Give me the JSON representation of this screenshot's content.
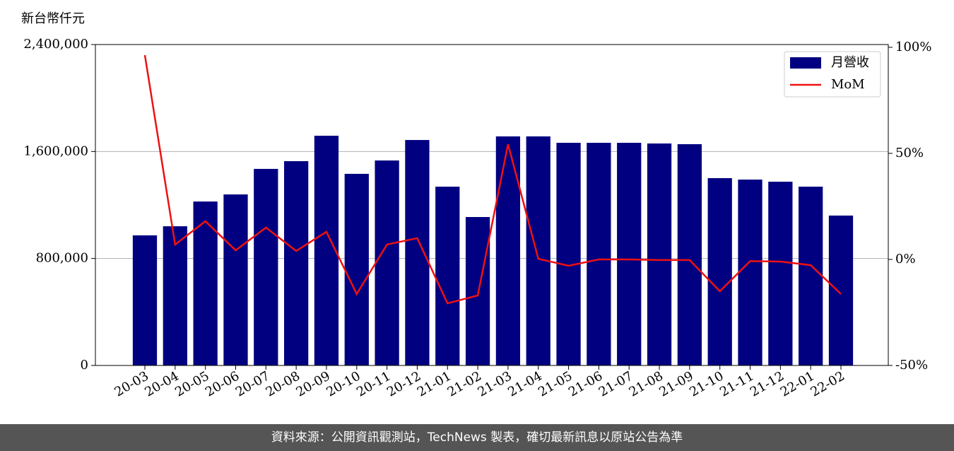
{
  "chart_data": {
    "type": "bar",
    "ylabel": "新台幣仟元",
    "categories": [
      "20-03",
      "20-04",
      "20-05",
      "20-06",
      "20-07",
      "20-08",
      "20-09",
      "20-10",
      "20-11",
      "20-12",
      "21-01",
      "21-02",
      "21-03",
      "21-04",
      "21-05",
      "21-06",
      "21-07",
      "21-08",
      "21-09",
      "21-10",
      "21-11",
      "21-12",
      "22-01",
      "22-02"
    ],
    "series": [
      {
        "name": "月營收",
        "type": "bar",
        "color": "#000080",
        "values": [
          973000,
          1041000,
          1226000,
          1279000,
          1470000,
          1528000,
          1718000,
          1433000,
          1533000,
          1686000,
          1337000,
          1110000,
          1713000,
          1713000,
          1665000,
          1665000,
          1665000,
          1660000,
          1655000,
          1401000,
          1390000,
          1374000,
          1337000,
          1121000
        ]
      },
      {
        "name": "MoM",
        "type": "line",
        "axis": "y2",
        "color": "#ee1111",
        "values": [
          96.3,
          7,
          18,
          4.3,
          15,
          4,
          13,
          -16.3,
          7,
          10,
          -20.7,
          -17,
          54.3,
          0.3,
          -3,
          0,
          0,
          -0.3,
          -0.3,
          -15,
          -0.8,
          -1,
          -2.7,
          -16.3
        ]
      }
    ],
    "ylim": [
      0,
      2400000
    ],
    "yticks": [
      {
        "value": 0,
        "label": "0"
      },
      {
        "value": 800000,
        "label": "800,000"
      },
      {
        "value": 1600000,
        "label": "1,600,000"
      },
      {
        "value": 2400000,
        "label": "2,400,000"
      }
    ],
    "y2lim": [
      -50,
      101.3
    ],
    "y2ticks": [
      {
        "value": -50,
        "label": "-50%"
      },
      {
        "value": 0,
        "label": "0%"
      },
      {
        "value": 50,
        "label": "50%"
      },
      {
        "value": 100,
        "label": "100%"
      }
    ],
    "grid": true,
    "legend": "upper right"
  },
  "footer": "資料來源：公開資訊觀測站，TechNews 製表，確切最新訊息以原站公告為準"
}
